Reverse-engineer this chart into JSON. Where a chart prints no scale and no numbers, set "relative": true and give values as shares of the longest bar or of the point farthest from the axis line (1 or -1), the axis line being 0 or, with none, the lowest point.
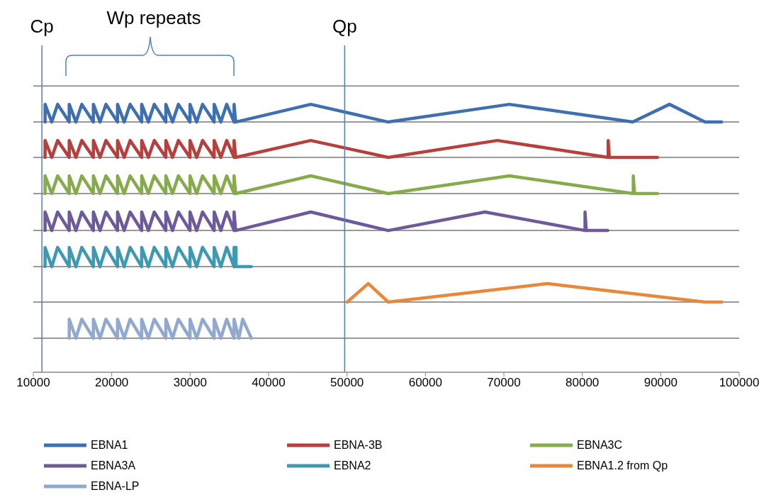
{
  "chart_data": {
    "type": "line",
    "relative": true,
    "annotations": [
      "Wp repeats"
    ],
    "xlim": [
      10000,
      100000
    ],
    "xticks": [
      10000,
      20000,
      30000,
      40000,
      50000,
      60000,
      70000,
      80000,
      90000,
      100000
    ],
    "grid": "y",
    "legend": "bottom",
    "marker": "none",
    "line_style": "solid",
    "tick_labels": "x",
    "ref_lines": [
      {
        "axis": "x",
        "value": 11100,
        "label": "Cp",
        "color": "#4f81bd"
      },
      {
        "axis": "x",
        "value": 49700,
        "label": "Qp",
        "color": "#4f81bd"
      }
    ],
    "series": [
      {
        "name": "EBNA1",
        "color": "#3e6fb0",
        "x": [
          11500,
          11500,
          12350,
          13100,
          14580,
          14580,
          15430,
          16180,
          17660,
          17660,
          18510,
          19260,
          20740,
          20740,
          21590,
          22340,
          23820,
          23820,
          24670,
          25420,
          26900,
          26900,
          27750,
          28500,
          29980,
          29980,
          30830,
          31580,
          33060,
          33060,
          33910,
          34660,
          35600,
          35600,
          35800,
          45380,
          55260,
          70700,
          86420,
          91120,
          95640,
          97760
        ],
        "values": [
          0.934,
          1,
          0.934,
          1,
          0.934,
          1,
          0.934,
          1,
          0.934,
          1,
          0.934,
          1,
          0.934,
          1,
          0.934,
          1,
          0.934,
          1,
          0.934,
          1,
          0.934,
          1,
          0.934,
          1,
          0.934,
          1,
          0.934,
          1,
          0.934,
          1,
          0.934,
          1,
          0.934,
          1,
          0.934,
          1,
          0.934,
          1,
          0.934,
          1,
          0.934,
          0.934
        ]
      },
      {
        "name": "EBNA-3B",
        "color": "#b5403d",
        "x": [
          11500,
          11500,
          12350,
          13100,
          14580,
          14580,
          15430,
          16180,
          17660,
          17660,
          18510,
          19260,
          20740,
          20740,
          21590,
          22340,
          23820,
          23820,
          24670,
          25420,
          26900,
          26900,
          27750,
          28500,
          29980,
          29980,
          30830,
          31580,
          33060,
          33060,
          33910,
          34660,
          35600,
          35600,
          35800,
          45380,
          55260,
          69170,
          83300,
          83300,
          83450,
          89580
        ],
        "values": [
          0.802,
          0.865,
          0.802,
          0.865,
          0.802,
          0.865,
          0.802,
          0.865,
          0.802,
          0.865,
          0.802,
          0.865,
          0.802,
          0.865,
          0.802,
          0.865,
          0.802,
          0.865,
          0.802,
          0.865,
          0.802,
          0.865,
          0.802,
          0.865,
          0.802,
          0.865,
          0.802,
          0.865,
          0.802,
          0.865,
          0.802,
          0.865,
          0.802,
          0.865,
          0.802,
          0.865,
          0.802,
          0.865,
          0.802,
          0.865,
          0.802,
          0.802
        ]
      },
      {
        "name": "EBNA3C",
        "color": "#86ab4a",
        "x": [
          11500,
          11500,
          12350,
          13100,
          14580,
          14580,
          15430,
          16180,
          17660,
          17660,
          18510,
          19260,
          20740,
          20740,
          21590,
          22340,
          23820,
          23820,
          24670,
          25420,
          26900,
          26900,
          27750,
          28500,
          29980,
          29980,
          30830,
          31580,
          33060,
          33060,
          33910,
          34660,
          35600,
          35600,
          35800,
          45380,
          55260,
          70700,
          86500,
          86500,
          86650,
          89580
        ],
        "values": [
          0.667,
          0.733,
          0.667,
          0.733,
          0.667,
          0.733,
          0.667,
          0.733,
          0.667,
          0.733,
          0.667,
          0.733,
          0.667,
          0.733,
          0.667,
          0.733,
          0.667,
          0.733,
          0.667,
          0.733,
          0.667,
          0.733,
          0.667,
          0.733,
          0.667,
          0.733,
          0.667,
          0.733,
          0.667,
          0.733,
          0.667,
          0.733,
          0.667,
          0.733,
          0.667,
          0.733,
          0.667,
          0.733,
          0.667,
          0.733,
          0.667,
          0.667
        ]
      },
      {
        "name": "EBNA3A",
        "color": "#6e5a9a",
        "x": [
          11500,
          11500,
          12350,
          13100,
          14580,
          14580,
          15430,
          16180,
          17660,
          17660,
          18510,
          19260,
          20740,
          20740,
          21590,
          22340,
          23820,
          23820,
          24670,
          25420,
          26900,
          26900,
          27750,
          28500,
          29980,
          29980,
          30830,
          31580,
          33060,
          33060,
          33910,
          34660,
          35600,
          35600,
          35800,
          45380,
          55260,
          67590,
          80350,
          80350,
          80500,
          83240
        ],
        "values": [
          0.529,
          0.598,
          0.529,
          0.598,
          0.529,
          0.598,
          0.529,
          0.598,
          0.529,
          0.598,
          0.529,
          0.598,
          0.529,
          0.598,
          0.529,
          0.598,
          0.529,
          0.598,
          0.529,
          0.598,
          0.529,
          0.598,
          0.529,
          0.598,
          0.529,
          0.598,
          0.529,
          0.598,
          0.529,
          0.598,
          0.529,
          0.598,
          0.529,
          0.598,
          0.529,
          0.598,
          0.529,
          0.598,
          0.529,
          0.598,
          0.529,
          0.529
        ]
      },
      {
        "name": "EBNA2",
        "color": "#3d9ab2",
        "x": [
          11500,
          11500,
          12350,
          13100,
          14580,
          14580,
          15430,
          16180,
          17660,
          17660,
          18510,
          19260,
          20740,
          20740,
          21590,
          22340,
          23820,
          23820,
          24670,
          25420,
          26900,
          26900,
          27750,
          28500,
          29980,
          29980,
          30830,
          31580,
          33060,
          33060,
          33910,
          34660,
          35600,
          35600,
          35850,
          35850,
          37800
        ],
        "values": [
          0.394,
          0.466,
          0.394,
          0.466,
          0.394,
          0.466,
          0.394,
          0.466,
          0.394,
          0.466,
          0.394,
          0.466,
          0.394,
          0.466,
          0.394,
          0.466,
          0.394,
          0.466,
          0.394,
          0.466,
          0.394,
          0.466,
          0.394,
          0.466,
          0.394,
          0.466,
          0.394,
          0.466,
          0.394,
          0.466,
          0.394,
          0.466,
          0.394,
          0.466,
          0.466,
          0.394,
          0.394
        ]
      },
      {
        "name": "EBNA1.2 from Qp",
        "color": "#e8883a",
        "x": [
          50020,
          52710,
          55260,
          75550,
          95640,
          97760
        ],
        "values": [
          0.262,
          0.331,
          0.262,
          0.331,
          0.262,
          0.262
        ]
      },
      {
        "name": "EBNA-LP",
        "color": "#92a9cf",
        "x": [
          14580,
          14580,
          15430,
          16180,
          17660,
          17660,
          18510,
          19260,
          20740,
          20740,
          21590,
          22340,
          23820,
          23820,
          24670,
          25420,
          26900,
          26900,
          27750,
          28500,
          29980,
          29980,
          30830,
          31580,
          33060,
          33060,
          33910,
          34660,
          35600,
          35600,
          36200,
          36700,
          37800
        ],
        "values": [
          0.127,
          0.198,
          0.127,
          0.198,
          0.127,
          0.198,
          0.127,
          0.198,
          0.127,
          0.198,
          0.127,
          0.198,
          0.127,
          0.198,
          0.127,
          0.198,
          0.127,
          0.198,
          0.127,
          0.198,
          0.127,
          0.198,
          0.127,
          0.198,
          0.127,
          0.198,
          0.127,
          0.198,
          0.127,
          0.198,
          0.127,
          0.198,
          0.127
        ]
      }
    ]
  }
}
